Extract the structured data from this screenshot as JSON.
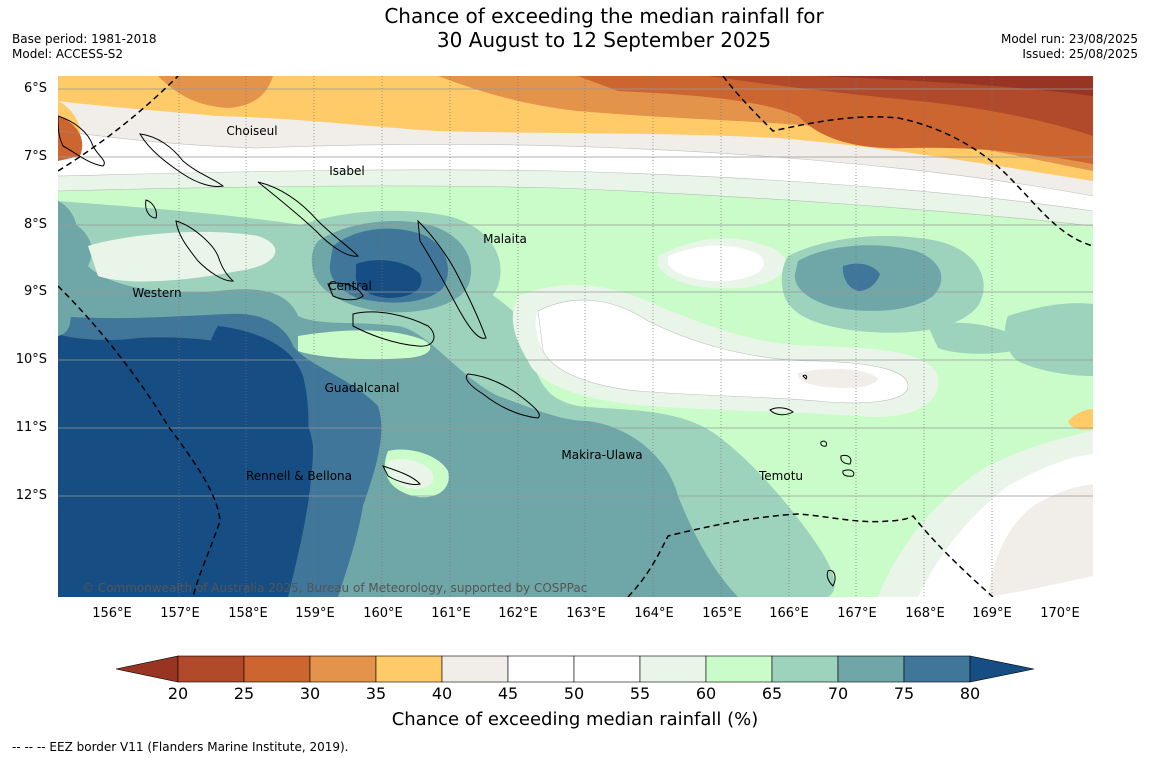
{
  "title": {
    "line1": "Chance of exceeding the median rainfall for",
    "line2": "30 August to 12 September 2025"
  },
  "meta": {
    "base_period": "Base period: 1981-2018",
    "model": "Model: ACCESS-S2",
    "model_run": "Model run: 23/08/2025",
    "issued": "Issued: 25/08/2025"
  },
  "lat_labels": [
    "6°S",
    "7°S",
    "8°S",
    "9°S",
    "10°S",
    "11°S",
    "12°S"
  ],
  "lon_labels": [
    "156°E",
    "157°E",
    "158°E",
    "159°E",
    "160°E",
    "161°E",
    "162°E",
    "163°E",
    "164°E",
    "165°E",
    "166°E",
    "167°E",
    "168°E",
    "169°E",
    "170°E"
  ],
  "regions": {
    "choiseul": "Choiseul",
    "isabel": "Isabel",
    "malaita": "Malaita",
    "western": "Western",
    "central": "Central",
    "guadalcanal": "Guadalcanal",
    "makira": "Makira-Ulawa",
    "rennell": "Rennell & Bellona",
    "temotu": "Temotu"
  },
  "copyright": "© Commonwealth of Australia 2025, Bureau of Meteorology, supported by COSPPac",
  "colorbar": {
    "ticks": [
      "20",
      "25",
      "30",
      "35",
      "40",
      "45",
      "50",
      "55",
      "60",
      "65",
      "70",
      "75",
      "80"
    ],
    "colors": [
      "#973522",
      "#b04a2a",
      "#cd6530",
      "#e3934a",
      "#fecb68",
      "#f1ede8",
      "#ffffff",
      "#ffffff",
      "#e9f5e8",
      "#cafcca",
      "#9dd2bc",
      "#6fa6a7",
      "#3f7699",
      "#164e84"
    ],
    "title": "Chance of exceeding median rainfall (%)"
  },
  "footnote": "--  --  -- EEZ border V11 (Flanders Marine Institute, 2019)."
}
